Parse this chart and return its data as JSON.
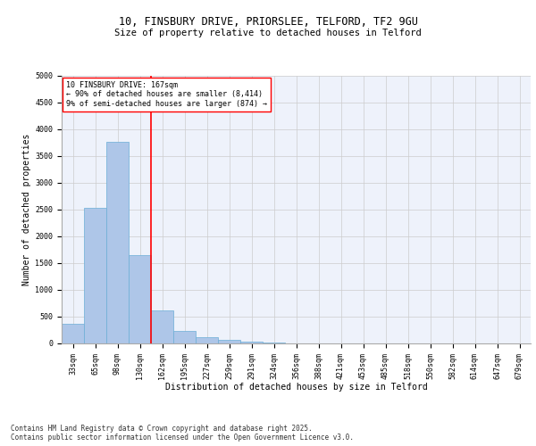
{
  "title_line1": "10, FINSBURY DRIVE, PRIORSLEE, TELFORD, TF2 9GU",
  "title_line2": "Size of property relative to detached houses in Telford",
  "xlabel": "Distribution of detached houses by size in Telford",
  "ylabel": "Number of detached properties",
  "bins": [
    "33sqm",
    "65sqm",
    "98sqm",
    "130sqm",
    "162sqm",
    "195sqm",
    "227sqm",
    "259sqm",
    "291sqm",
    "324sqm",
    "356sqm",
    "388sqm",
    "421sqm",
    "453sqm",
    "485sqm",
    "518sqm",
    "550sqm",
    "582sqm",
    "614sqm",
    "647sqm",
    "679sqm"
  ],
  "values": [
    375,
    2540,
    3760,
    1650,
    620,
    230,
    110,
    60,
    40,
    10,
    0,
    0,
    0,
    0,
    0,
    0,
    0,
    0,
    0,
    0,
    0
  ],
  "bar_color": "#aec6e8",
  "bar_edge_color": "#6baed6",
  "property_line_x": 4,
  "annotation_text": "10 FINSBURY DRIVE: 167sqm\n← 90% of detached houses are smaller (8,414)\n9% of semi-detached houses are larger (874) →",
  "annotation_box_color": "white",
  "annotation_box_edge_color": "red",
  "vline_color": "red",
  "ylim": [
    0,
    5000
  ],
  "yticks": [
    0,
    500,
    1000,
    1500,
    2000,
    2500,
    3000,
    3500,
    4000,
    4500,
    5000
  ],
  "grid_color": "#cccccc",
  "background_color": "#eef2fb",
  "footer_text": "Contains HM Land Registry data © Crown copyright and database right 2025.\nContains public sector information licensed under the Open Government Licence v3.0.",
  "title_fontsize": 8.5,
  "subtitle_fontsize": 7.5,
  "axis_label_fontsize": 7,
  "tick_fontsize": 6,
  "annotation_fontsize": 6,
  "footer_fontsize": 5.5
}
